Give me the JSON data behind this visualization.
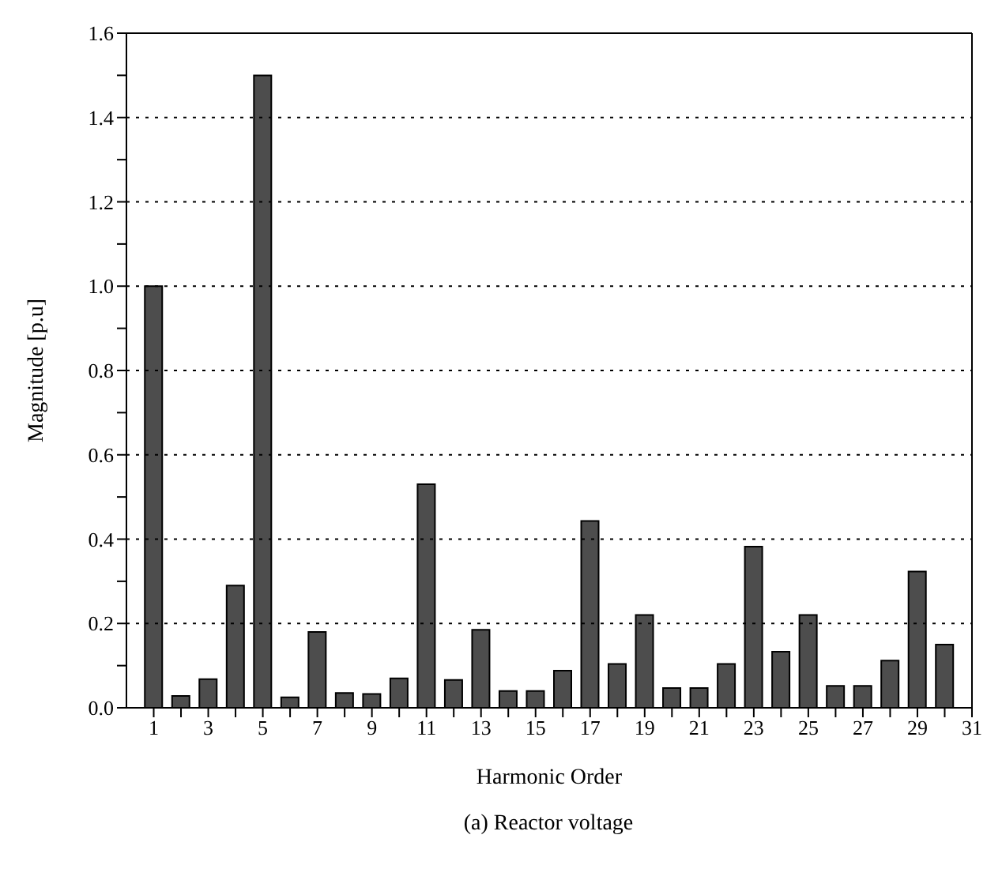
{
  "chart_data": {
    "type": "bar",
    "title": "(a) Reactor voltage",
    "xlabel": "Harmonic Order",
    "ylabel": "Magnitude [p.u]",
    "x": [
      1,
      2,
      3,
      4,
      5,
      6,
      7,
      8,
      9,
      10,
      11,
      12,
      13,
      14,
      15,
      16,
      17,
      18,
      19,
      20,
      21,
      22,
      23,
      24,
      25,
      26,
      27,
      28,
      29,
      30
    ],
    "values": [
      1.0,
      0.028,
      0.068,
      0.29,
      1.5,
      0.025,
      0.18,
      0.035,
      0.033,
      0.07,
      0.53,
      0.066,
      0.185,
      0.04,
      0.04,
      0.088,
      0.443,
      0.104,
      0.22,
      0.047,
      0.047,
      0.104,
      0.382,
      0.133,
      0.22,
      0.052,
      0.052,
      0.112,
      0.323,
      0.15
    ],
    "color": "#4d4d4d",
    "xlim": [
      0,
      31
    ],
    "xticks": [
      1,
      {
        "value": 2,
        "label": null
      },
      3,
      {
        "value": 4,
        "label": null
      },
      5,
      {
        "value": 6,
        "label": null
      },
      7,
      {
        "value": 8,
        "label": null
      },
      9,
      {
        "value": 10,
        "label": null
      },
      11,
      {
        "value": 12,
        "label": null
      },
      13,
      {
        "value": 14,
        "label": null
      },
      15,
      {
        "value": 16,
        "label": null
      },
      17,
      {
        "value": 18,
        "label": null
      },
      19,
      {
        "value": 20,
        "label": null
      },
      21,
      {
        "value": 22,
        "label": null
      },
      23,
      {
        "value": 24,
        "label": null
      },
      25,
      {
        "value": 26,
        "label": null
      },
      27,
      {
        "value": 28,
        "label": null
      },
      29,
      {
        "value": 30,
        "label": null
      },
      31
    ],
    "ylim": [
      0,
      1.6
    ],
    "yticks": [
      {
        "value": 0,
        "label": "0.0"
      },
      {
        "value": 0.1,
        "label": null
      },
      {
        "value": 0.2,
        "label": "0.2"
      },
      {
        "value": 0.3,
        "label": null
      },
      {
        "value": 0.4,
        "label": "0.4"
      },
      {
        "value": 0.5,
        "label": null
      },
      {
        "value": 0.6,
        "label": "0.6"
      },
      {
        "value": 0.7,
        "label": null
      },
      {
        "value": 0.8,
        "label": "0.8"
      },
      {
        "value": 0.9,
        "label": null
      },
      {
        "value": 1,
        "label": "1.0"
      },
      {
        "value": 1.1,
        "label": null
      },
      {
        "value": 1.2,
        "label": "1.2"
      },
      {
        "value": 1.3,
        "label": null
      },
      {
        "value": 1.4,
        "label": "1.4"
      },
      {
        "value": 1.5,
        "label": null
      },
      {
        "value": 1.6,
        "label": "1.6"
      }
    ],
    "grid": "y"
  }
}
